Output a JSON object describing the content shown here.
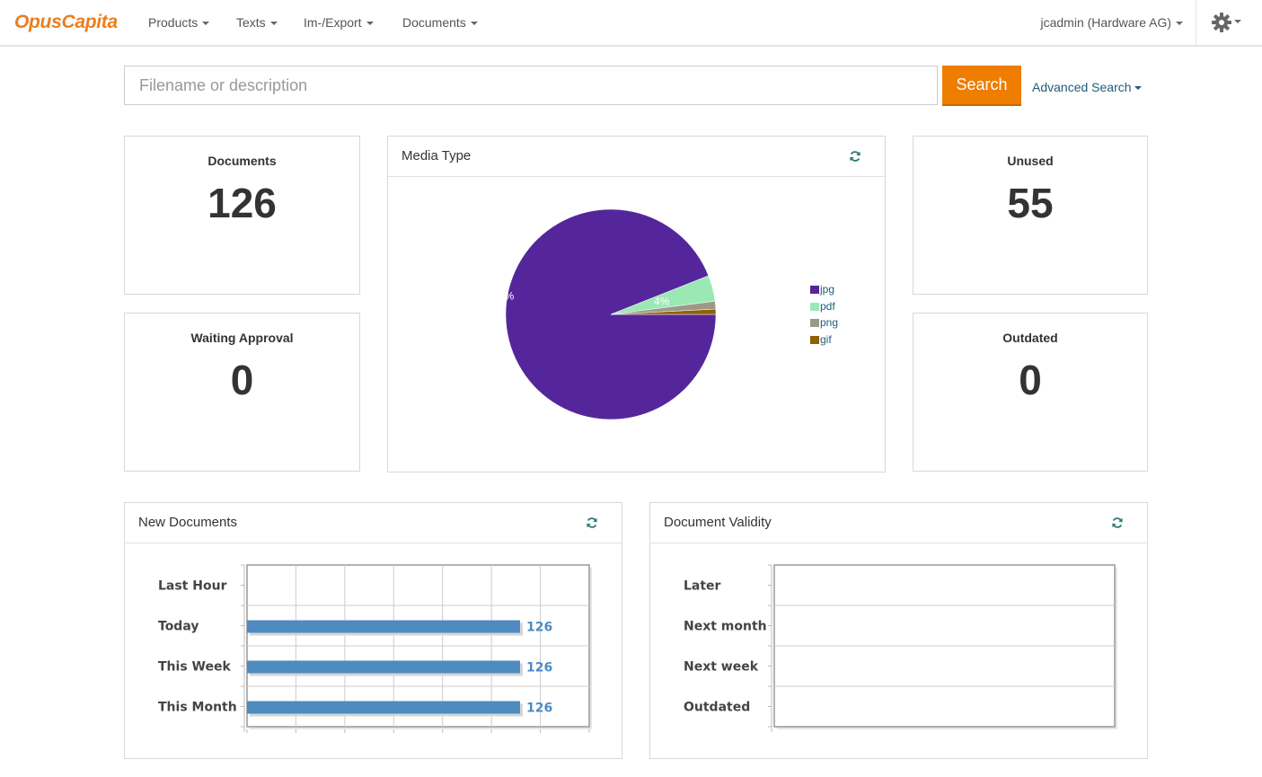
{
  "navbar": {
    "brand": "OpusCapita",
    "menu": [
      "Products",
      "Texts",
      "Im-/Export",
      "Documents"
    ],
    "user": "jcadmin (Hardware AG)",
    "settings_icon": "gear-icon"
  },
  "search": {
    "placeholder": "Filename or description",
    "button": "Search",
    "advanced": "Advanced Search"
  },
  "stats": {
    "documents": {
      "label": "Documents",
      "value": "126"
    },
    "waiting": {
      "label": "Waiting Approval",
      "value": "0"
    },
    "unused": {
      "label": "Unused",
      "value": "55"
    },
    "outdated": {
      "label": "Outdated",
      "value": "0"
    }
  },
  "panels": {
    "media_type": {
      "title": "Media Type"
    },
    "new_documents": {
      "title": "New Documents"
    },
    "validity": {
      "title": "Document Validity"
    }
  },
  "chart_data": [
    {
      "type": "pie",
      "title": "Media Type",
      "labels": [
        "jpg",
        "pdf",
        "png",
        "gif"
      ],
      "values": [
        94,
        4,
        1.2,
        0.8
      ],
      "slice_labels": [
        "94%",
        "4%",
        "",
        ""
      ],
      "colors": [
        "#55269b",
        "#9ae9b5",
        "#9d9987",
        "#8f6100"
      ],
      "legend": "right"
    },
    {
      "type": "bar",
      "orientation": "horizontal",
      "title": "New Documents",
      "categories": [
        "Last Hour",
        "Today",
        "This Week",
        "This Month"
      ],
      "values": [
        0,
        126,
        126,
        126
      ],
      "value_labels": [
        "",
        "126",
        "126",
        "126"
      ],
      "xlim": [
        0,
        126
      ],
      "color": "#4e8bc0",
      "grid": true
    },
    {
      "type": "bar",
      "orientation": "horizontal",
      "title": "Document Validity",
      "categories": [
        "Later",
        "Next month",
        "Next week",
        "Outdated"
      ],
      "values": [
        0,
        0,
        0,
        0
      ],
      "grid": true
    }
  ]
}
